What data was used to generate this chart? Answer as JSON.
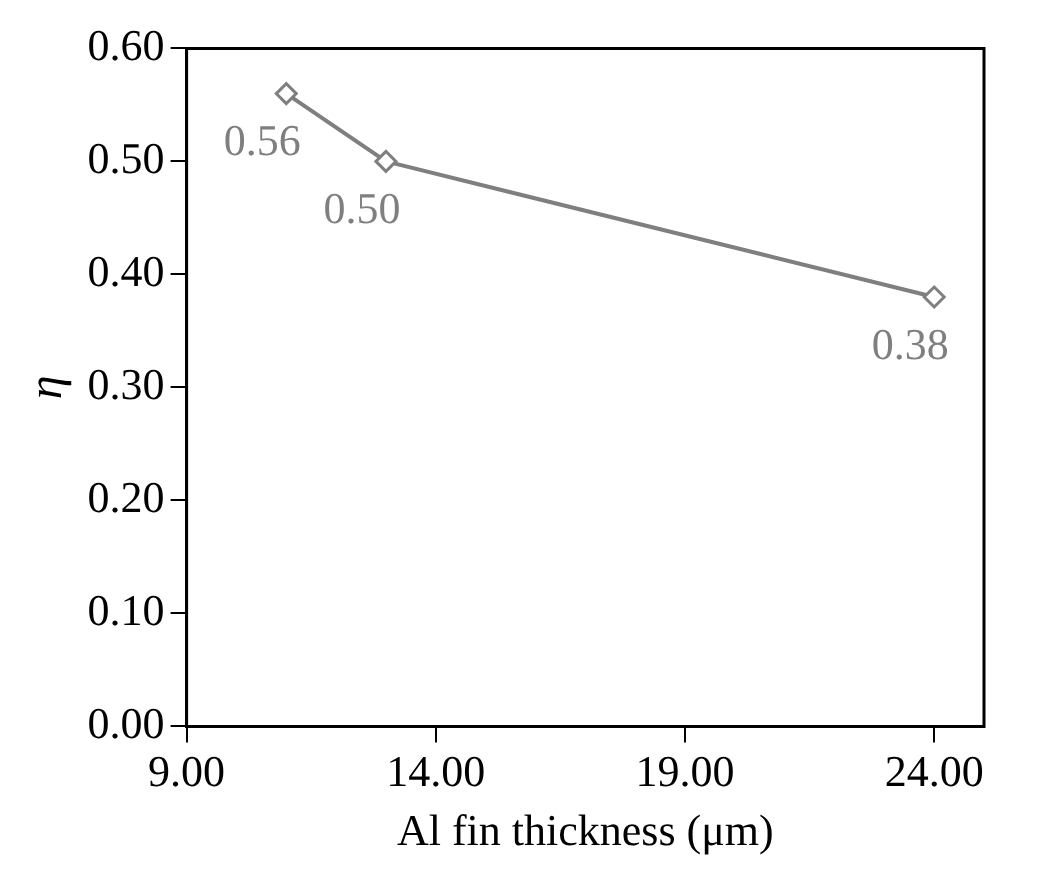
{
  "chart_data": {
    "type": "line",
    "xlabel": "Al fin thickness (μm)",
    "ylabel": "η",
    "x": [
      11,
      13,
      24
    ],
    "series": [
      {
        "color": "#7f7f7f",
        "values": [
          0.56,
          0.5,
          0.38
        ]
      }
    ],
    "xlim": [
      9,
      25
    ],
    "xticks": [
      {
        "value": 9,
        "label": "9.00"
      },
      {
        "value": 14,
        "label": "14.00"
      },
      {
        "value": 19,
        "label": "19.00"
      },
      {
        "value": 24,
        "label": "24.00"
      }
    ],
    "ylim": [
      0,
      0.6
    ],
    "yticks": [
      {
        "value": 0,
        "label": "0.00"
      },
      {
        "value": 0.1,
        "label": "0.10"
      },
      {
        "value": 0.2,
        "label": "0.20"
      },
      {
        "value": 0.3,
        "label": "0.30"
      },
      {
        "value": 0.4,
        "label": "0.40"
      },
      {
        "value": 0.5,
        "label": "0.50"
      },
      {
        "value": 0.6,
        "label": "0.60"
      }
    ],
    "value_labels": [
      "0.56",
      "0.50",
      "0.38"
    ],
    "grid": false,
    "legend": false,
    "marker": "diamond",
    "line_style": "solid"
  }
}
